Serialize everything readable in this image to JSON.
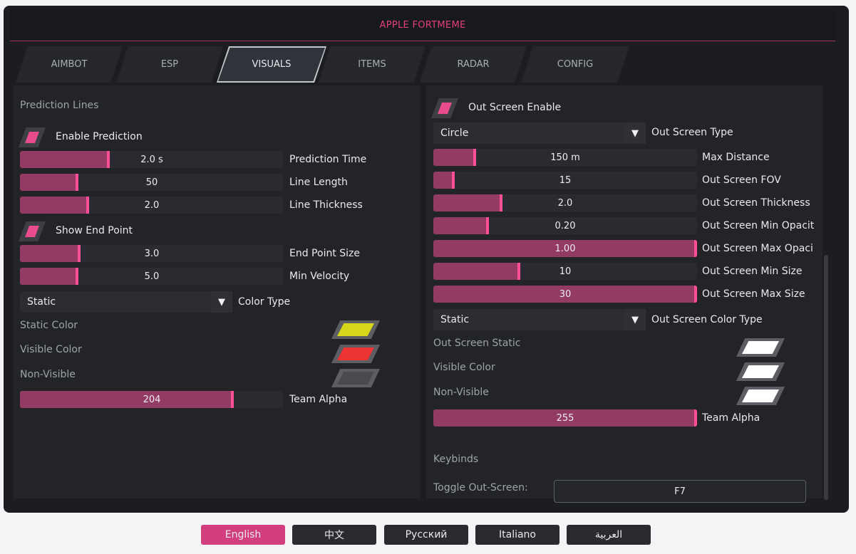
{
  "app": {
    "title": "APPLE FORTMEME"
  },
  "tabs": [
    {
      "label": "AIMBOT",
      "active": false
    },
    {
      "label": "ESP",
      "active": false
    },
    {
      "label": "VISUALS",
      "active": true
    },
    {
      "label": "ITEMS",
      "active": false
    },
    {
      "label": "RADAR",
      "active": false
    },
    {
      "label": "CONFIG",
      "active": false
    }
  ],
  "colors": {
    "accent": "#e84c8d",
    "slider_fill": "#933b62",
    "active_tab_border": "#c5c8cd"
  },
  "left": {
    "section_title": "Prediction Lines",
    "enable_prediction": {
      "label": "Enable Prediction",
      "checked": true
    },
    "prediction_time": {
      "value_text": "2.0 s",
      "label": "Prediction Time",
      "fraction": 0.33
    },
    "line_length": {
      "value_text": "50",
      "label": "Line Length",
      "fraction": 0.21
    },
    "line_thickness": {
      "value_text": "2.0",
      "label": "Line Thickness",
      "fraction": 0.25
    },
    "show_end_point": {
      "label": "Show End Point",
      "checked": true
    },
    "end_point_size": {
      "value_text": "3.0",
      "label": "End Point Size",
      "fraction": 0.22
    },
    "min_velocity": {
      "value_text": "5.0",
      "label": "Min Velocity",
      "fraction": 0.21
    },
    "color_type": {
      "value": "Static",
      "label": "Color Type"
    },
    "static_color": {
      "label": "Static Color",
      "color": "#d6d61a"
    },
    "visible_color": {
      "label": "Visible Color",
      "color": "#ee3333"
    },
    "non_visible": {
      "label": "Non-Visible",
      "color": "#4a4a4e"
    },
    "team_alpha": {
      "value_text": "204",
      "label": "Team Alpha",
      "fraction": 0.8
    }
  },
  "right": {
    "out_screen_enable": {
      "label": "Out Screen Enable",
      "checked": true
    },
    "out_screen_type": {
      "value": "Circle",
      "label": "Out Screen Type"
    },
    "max_distance": {
      "value_text": "150 m",
      "label": "Max Distance",
      "fraction": 0.15
    },
    "fov": {
      "value_text": "15",
      "label": "Out Screen FOV",
      "fraction": 0.07
    },
    "thickness": {
      "value_text": "2.0",
      "label": "Out Screen Thickness",
      "fraction": 0.25
    },
    "min_opacity": {
      "value_text": "0.20",
      "label": "Out Screen Min Opacit",
      "fraction": 0.2
    },
    "max_opacity": {
      "value_text": "1.00",
      "label": "Out Screen Max Opaci",
      "fraction": 1.0
    },
    "min_size": {
      "value_text": "10",
      "label": "Out Screen Min Size",
      "fraction": 0.32
    },
    "max_size": {
      "value_text": "30",
      "label": "Out Screen Max Size",
      "fraction": 1.0
    },
    "color_type": {
      "value": "Static",
      "label": "Out Screen Color Type"
    },
    "static_color": {
      "label": "Out Screen Static",
      "color": "#ffffff"
    },
    "visible_color": {
      "label": "Visible Color",
      "color": "#ffffff"
    },
    "non_visible": {
      "label": "Non-Visible",
      "color": "#ffffff"
    },
    "team_alpha": {
      "value_text": "255",
      "label": "Team Alpha",
      "fraction": 1.0
    },
    "keybinds_title": "Keybinds",
    "toggle_label": "Toggle Out-Screen:",
    "toggle_key": "F7"
  },
  "languages": [
    {
      "label": "English",
      "active": true
    },
    {
      "label": "中文",
      "active": false
    },
    {
      "label": "Русский",
      "active": false
    },
    {
      "label": "Italiano",
      "active": false
    },
    {
      "label": "العربية",
      "active": false
    }
  ]
}
